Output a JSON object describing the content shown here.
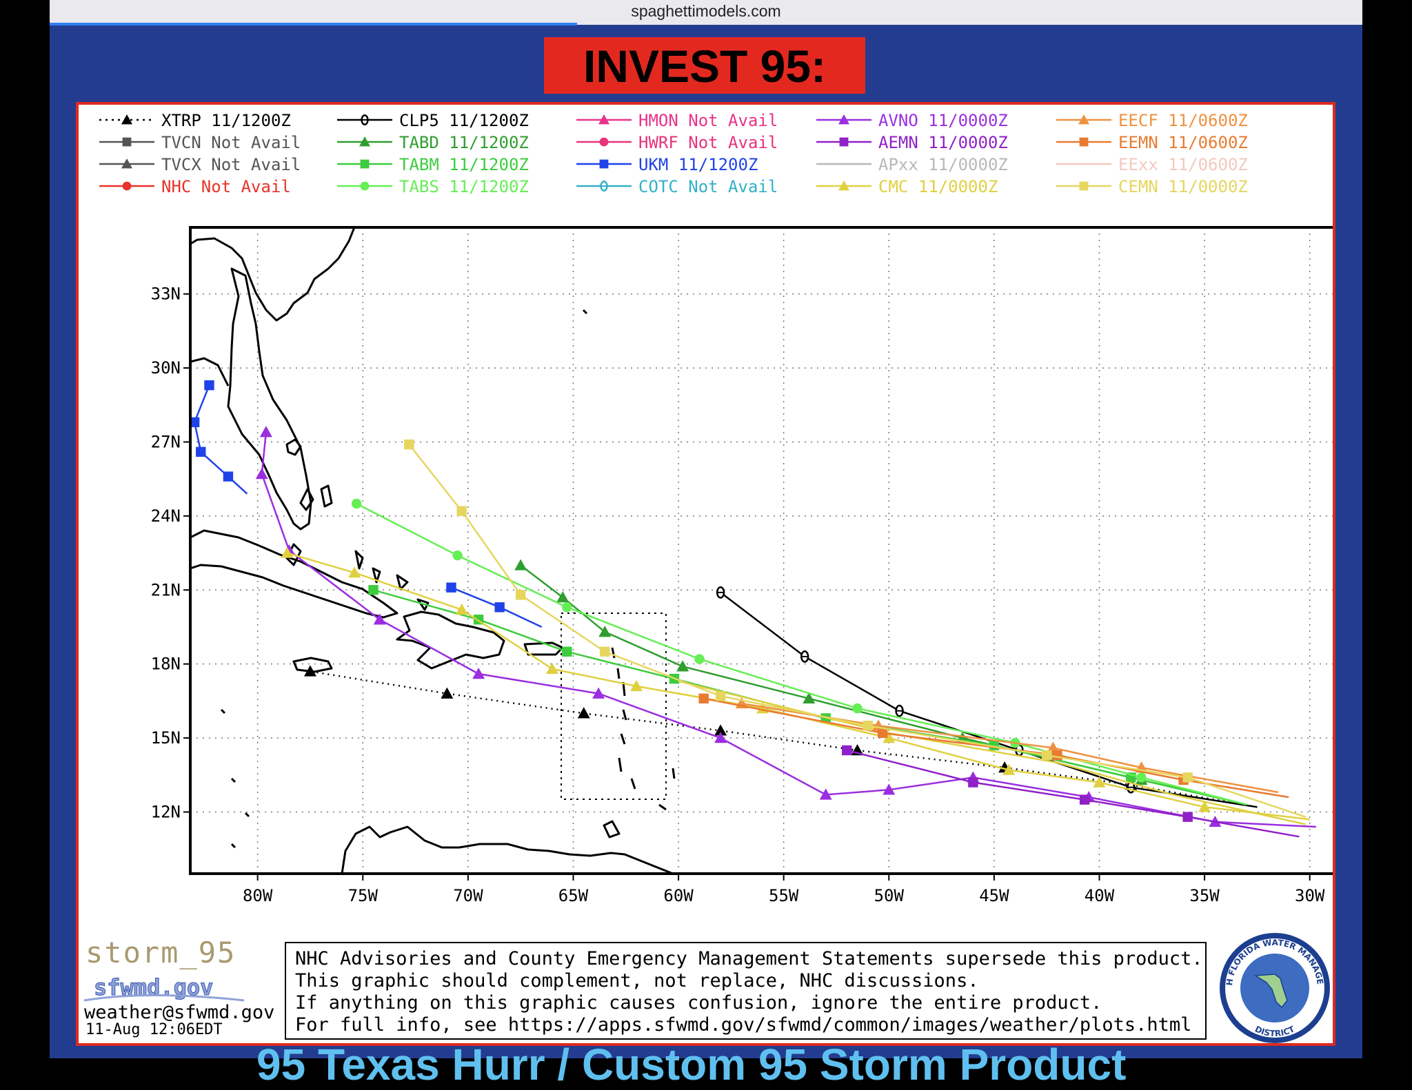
{
  "browser": {
    "url": "spaghettimodels.com"
  },
  "page": {
    "title": "INVEST 95:",
    "bottom_cut_text": "95 Texas Hurr / Custom 95 Storm Product"
  },
  "legend": [
    {
      "label": "XTRP",
      "time": "11/1200Z",
      "color": "#000000",
      "marker": "triangle",
      "style": "dotted"
    },
    {
      "label": "TVCN",
      "time": "Not Avail",
      "color": "#555555",
      "marker": "square",
      "style": "solid"
    },
    {
      "label": "TVCX",
      "time": "Not Avail",
      "color": "#555555",
      "marker": "triangle",
      "style": "solid"
    },
    {
      "label": "NHC",
      "time": "Not Avail",
      "color": "#e8322a",
      "marker": "circle",
      "style": "solid"
    },
    {
      "label": "CLP5",
      "time": "11/1200Z",
      "color": "#000000",
      "marker": "theta",
      "style": "solid"
    },
    {
      "label": "TABD",
      "time": "11/1200Z",
      "color": "#2f9e2f",
      "marker": "triangle",
      "style": "solid"
    },
    {
      "label": "TABM",
      "time": "11/1200Z",
      "color": "#3dcc3d",
      "marker": "square",
      "style": "solid"
    },
    {
      "label": "TABS",
      "time": "11/1200Z",
      "color": "#66ee55",
      "marker": "circle",
      "style": "solid"
    },
    {
      "label": "HMON",
      "time": "Not Avail",
      "color": "#e8338a",
      "marker": "triangle",
      "style": "solid"
    },
    {
      "label": "HWRF",
      "time": "Not Avail",
      "color": "#e8337a",
      "marker": "circle",
      "style": "solid"
    },
    {
      "label": "UKM",
      "time": "11/1200Z",
      "color": "#1f43e8",
      "marker": "square",
      "style": "solid"
    },
    {
      "label": "COTC",
      "time": "Not Avail",
      "color": "#33b0c8",
      "marker": "theta",
      "style": "solid"
    },
    {
      "label": "AVNO",
      "time": "11/0000Z",
      "color": "#9a2ee0",
      "marker": "triangle",
      "style": "solid"
    },
    {
      "label": "AEMN",
      "time": "11/0000Z",
      "color": "#9020c8",
      "marker": "square",
      "style": "solid"
    },
    {
      "label": "APxx",
      "time": "11/0000Z",
      "color": "#b8b8b8",
      "marker": "none",
      "style": "solid"
    },
    {
      "label": "CMC",
      "time": "11/0000Z",
      "color": "#e0d040",
      "marker": "triangle",
      "style": "solid"
    },
    {
      "label": "EECF",
      "time": "11/0600Z",
      "color": "#ee9140",
      "marker": "triangle",
      "style": "solid"
    },
    {
      "label": "EEMN",
      "time": "11/0600Z",
      "color": "#e87b30",
      "marker": "square",
      "style": "solid"
    },
    {
      "label": "EExx",
      "time": "11/0600Z",
      "color": "#f4c8c0",
      "marker": "none",
      "style": "solid"
    },
    {
      "label": "CEMN",
      "time": "11/0000Z",
      "color": "#e6d65e",
      "marker": "square",
      "style": "solid"
    }
  ],
  "axes": {
    "lon_labels": [
      "80W",
      "75W",
      "70W",
      "65W",
      "60W",
      "55W",
      "50W",
      "45W",
      "40W",
      "35W",
      "30W"
    ],
    "lon_values": [
      -80,
      -75,
      -70,
      -65,
      -60,
      -55,
      -50,
      -45,
      -40,
      -35,
      -30
    ],
    "lat_labels": [
      "33N",
      "30N",
      "27N",
      "24N",
      "21N",
      "18N",
      "15N",
      "12N"
    ],
    "lat_values": [
      33,
      30,
      27,
      24,
      21,
      18,
      15,
      12
    ],
    "lon_range": [
      -83.2,
      -27.5
    ],
    "lat_range": [
      9.5,
      35.7
    ]
  },
  "tracks": {
    "XTRP": [
      [
        -32.5,
        12.2
      ],
      [
        -38.5,
        13.1
      ],
      [
        -44.5,
        13.8
      ],
      [
        -51.5,
        14.5
      ],
      [
        -58,
        15.3
      ],
      [
        -64.5,
        16
      ],
      [
        -71,
        16.8
      ],
      [
        -77.5,
        17.7
      ]
    ],
    "CLP5": [
      [
        -32.5,
        12.2
      ],
      [
        -38.5,
        13
      ],
      [
        -43.8,
        14.5
      ],
      [
        -49.5,
        16.1
      ],
      [
        -54,
        18.3
      ],
      [
        -58,
        20.9
      ]
    ],
    "TABD": [
      [
        -33,
        12.3
      ],
      [
        -38,
        13.3
      ],
      [
        -46.5,
        15
      ],
      [
        -53.8,
        16.6
      ],
      [
        -59.8,
        17.9
      ],
      [
        -63.5,
        19.3
      ],
      [
        -65.5,
        20.7
      ],
      [
        -67.5,
        22
      ]
    ],
    "TABM": [
      [
        -33,
        12.3
      ],
      [
        -38.5,
        13.4
      ],
      [
        -45,
        14.7
      ],
      [
        -53,
        15.8
      ],
      [
        -60.2,
        17.4
      ],
      [
        -65.3,
        18.5
      ],
      [
        -69.5,
        19.8
      ],
      [
        -74.5,
        21
      ]
    ],
    "TABS": [
      [
        -33,
        12.3
      ],
      [
        -38,
        13.4
      ],
      [
        -44,
        14.8
      ],
      [
        -51.5,
        16.2
      ],
      [
        -59,
        18.2
      ],
      [
        -65.3,
        20.3
      ],
      [
        -70.5,
        22.4
      ],
      [
        -75.3,
        24.5
      ]
    ],
    "UKM": [
      [
        -66.5,
        19.5
      ],
      [
        -68.5,
        20.3
      ],
      [
        -70.8,
        21.1
      ]
    ],
    "UKM2": [
      [
        -80.5,
        24.9
      ],
      [
        -81.4,
        25.6
      ],
      [
        -82.7,
        26.6
      ],
      [
        -83,
        27.8
      ],
      [
        -82.3,
        29.3
      ]
    ],
    "AVNO": [
      [
        -29.7,
        11.4
      ],
      [
        -34.5,
        11.6
      ],
      [
        -40.5,
        12.6
      ],
      [
        -46,
        13.4
      ],
      [
        -50,
        12.9
      ],
      [
        -53,
        12.7
      ],
      [
        -58,
        15
      ],
      [
        -63.8,
        16.8
      ],
      [
        -69.5,
        17.6
      ],
      [
        -74.2,
        19.8
      ],
      [
        -78.5,
        22.6
      ],
      [
        -79.8,
        25.7
      ],
      [
        -79.6,
        27.4
      ]
    ],
    "AEMN": [
      [
        -30.5,
        11
      ],
      [
        -35.8,
        11.8
      ],
      [
        -40.7,
        12.5
      ],
      [
        -46,
        13.2
      ],
      [
        -52,
        14.5
      ]
    ],
    "CMC": [
      [
        -30,
        11.7
      ],
      [
        -35,
        12.2
      ],
      [
        -40,
        13.2
      ],
      [
        -44.3,
        13.7
      ],
      [
        -50,
        15
      ],
      [
        -56,
        16.2
      ],
      [
        -62,
        17.1
      ],
      [
        -66,
        17.8
      ],
      [
        -70.3,
        20.2
      ],
      [
        -75.4,
        21.7
      ],
      [
        -78.6,
        22.5
      ]
    ],
    "CMC2": [
      [
        -30.2,
        11.5
      ],
      [
        -36.5,
        12.7
      ],
      [
        -42,
        14
      ],
      [
        -50,
        15.2
      ],
      [
        -60,
        17.3
      ]
    ],
    "EECF": [
      [
        -31.5,
        12.8
      ],
      [
        -38,
        13.8
      ],
      [
        -42.2,
        14.6
      ],
      [
        -50.5,
        15.5
      ],
      [
        -57,
        16.4
      ]
    ],
    "EEMN": [
      [
        -31,
        12.6
      ],
      [
        -36,
        13.3
      ],
      [
        -42,
        14.3
      ],
      [
        -50.3,
        15.2
      ],
      [
        -58.8,
        16.6
      ]
    ],
    "CEMN": [
      [
        -30.2,
        11.8
      ],
      [
        -35.8,
        13.4
      ],
      [
        -42.5,
        14.3
      ],
      [
        -51,
        15.5
      ],
      [
        -58,
        16.7
      ],
      [
        -63.5,
        18.5
      ],
      [
        -67.5,
        20.8
      ],
      [
        -70.3,
        24.2
      ],
      [
        -72.8,
        26.9
      ]
    ]
  },
  "footer": {
    "storm_id": "storm_95",
    "site": "sfwmd.gov",
    "email": "weather@sfwmd.gov",
    "timestamp": "11-Aug 12:06EDT",
    "disclaimer": [
      "NHC Advisories and County Emergency Management Statements supersede this product.",
      "This graphic should complement, not replace, NHC discussions.",
      "If anything on this graphic causes confusion, ignore the entire product.",
      "For full info, see  https://apps.sfwmd.gov/sfwmd/common/images/weather/plots.html"
    ],
    "seal_top": "SOUTH FLORIDA WATER MANAGEMENT",
    "seal_bottom": "DISTRICT"
  }
}
